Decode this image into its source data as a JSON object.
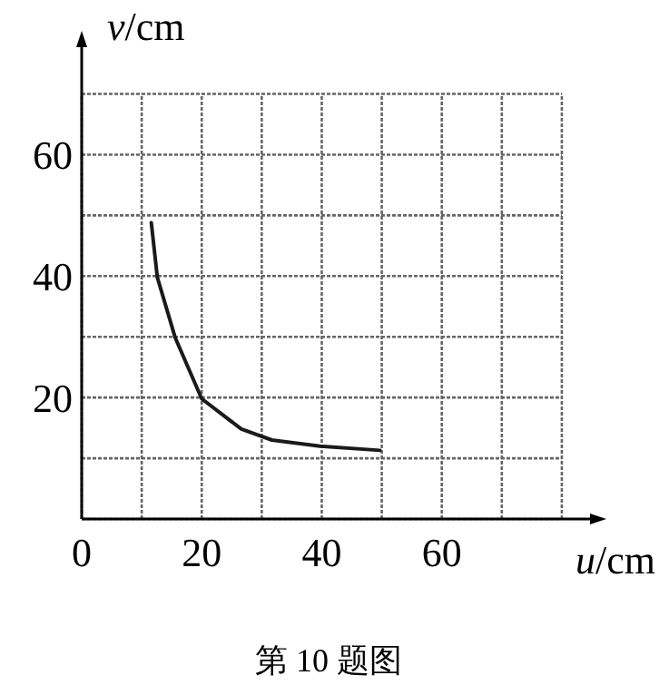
{
  "chart_data": {
    "type": "line",
    "xlabel": "u/cm",
    "ylabel": "v/cm",
    "annotations": [
      "第 10 题图"
    ],
    "x": [
      11.6,
      12.6,
      15.6,
      20,
      26.6,
      31.7,
      39.7,
      49.7
    ],
    "series": [
      {
        "color": "#1a1a1a",
        "values": [
          48.8,
          39.8,
          29.8,
          19.8,
          14.8,
          13,
          12,
          11.3
        ]
      }
    ],
    "xlim": [
      0,
      85
    ],
    "ylim": [
      0,
      78
    ],
    "xticks": [
      0,
      {
        "value": 10,
        "label": null
      },
      20,
      {
        "value": 30,
        "label": null
      },
      40,
      {
        "value": 50,
        "label": null
      },
      60,
      {
        "value": 70,
        "label": null
      },
      {
        "value": 80,
        "label": null
      }
    ],
    "yticks": [
      {
        "value": 0,
        "label": null
      },
      {
        "value": 10,
        "label": null
      },
      20,
      {
        "value": 30,
        "label": null
      },
      40,
      {
        "value": 50,
        "label": null
      },
      60,
      {
        "value": 70,
        "label": null
      }
    ],
    "grid": true,
    "marker": "none",
    "line_style": "solid"
  }
}
